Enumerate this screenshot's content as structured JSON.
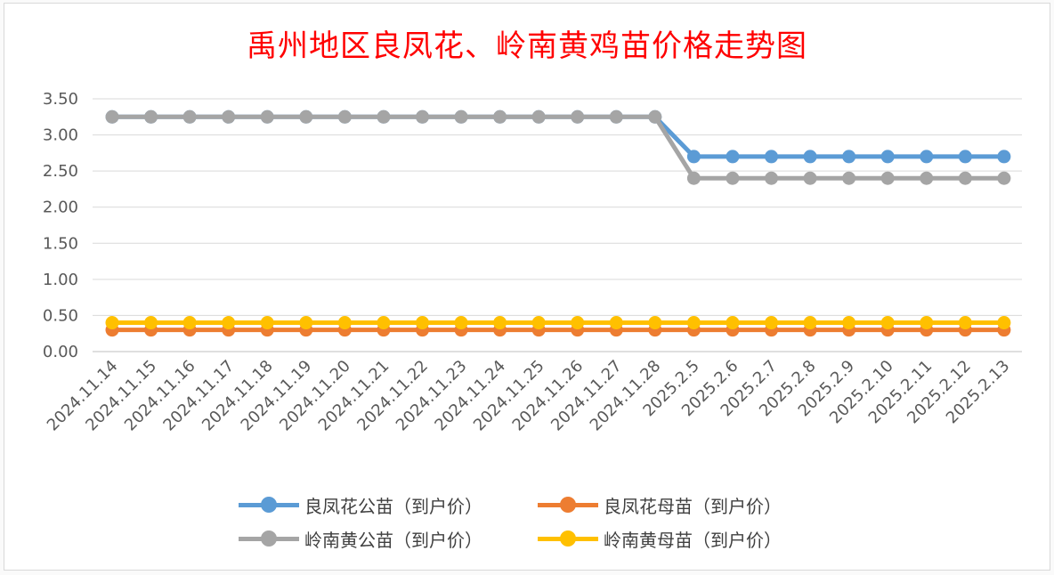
{
  "chart_data": {
    "type": "line",
    "title": "禹州地区良凤花、岭南黄鸡苗价格走势图",
    "xlabel": "",
    "ylabel": "",
    "ylim": [
      0,
      3.5
    ],
    "yticks": [
      "0.00",
      "0.50",
      "1.00",
      "1.50",
      "2.00",
      "2.50",
      "3.00",
      "3.50"
    ],
    "grid": true,
    "legend_position": "bottom",
    "categories": [
      "2024.11.14",
      "2024.11.15",
      "2024.11.16",
      "2024.11.17",
      "2024.11.18",
      "2024.11.19",
      "2024.11.20",
      "2024.11.21",
      "2024.11.22",
      "2024.11.23",
      "2024.11.24",
      "2024.11.25",
      "2024.11.26",
      "2024.11.27",
      "2024.11.28",
      "2025.2.5",
      "2025.2.6",
      "2025.2.7",
      "2025.2.8",
      "2025.2.9",
      "2025.2.10",
      "2025.2.11",
      "2025.2.12",
      "2025.2.13"
    ],
    "series": [
      {
        "name": "良凤花公苗（到户价）",
        "color": "#5b9bd5",
        "values": [
          3.25,
          3.25,
          3.25,
          3.25,
          3.25,
          3.25,
          3.25,
          3.25,
          3.25,
          3.25,
          3.25,
          3.25,
          3.25,
          3.25,
          3.25,
          2.7,
          2.7,
          2.7,
          2.7,
          2.7,
          2.7,
          2.7,
          2.7,
          2.7
        ]
      },
      {
        "name": "良凤花母苗（到户价）",
        "color": "#ed7d31",
        "values": [
          0.3,
          0.3,
          0.3,
          0.3,
          0.3,
          0.3,
          0.3,
          0.3,
          0.3,
          0.3,
          0.3,
          0.3,
          0.3,
          0.3,
          0.3,
          0.3,
          0.3,
          0.3,
          0.3,
          0.3,
          0.3,
          0.3,
          0.3,
          0.3
        ]
      },
      {
        "name": "岭南黄公苗（到户价）",
        "color": "#a5a5a5",
        "values": [
          3.25,
          3.25,
          3.25,
          3.25,
          3.25,
          3.25,
          3.25,
          3.25,
          3.25,
          3.25,
          3.25,
          3.25,
          3.25,
          3.25,
          3.25,
          2.4,
          2.4,
          2.4,
          2.4,
          2.4,
          2.4,
          2.4,
          2.4,
          2.4
        ]
      },
      {
        "name": "岭南黄母苗（到户价）",
        "color": "#ffc000",
        "values": [
          0.4,
          0.4,
          0.4,
          0.4,
          0.4,
          0.4,
          0.4,
          0.4,
          0.4,
          0.4,
          0.4,
          0.4,
          0.4,
          0.4,
          0.4,
          0.4,
          0.4,
          0.4,
          0.4,
          0.4,
          0.4,
          0.4,
          0.4,
          0.4
        ]
      }
    ]
  }
}
